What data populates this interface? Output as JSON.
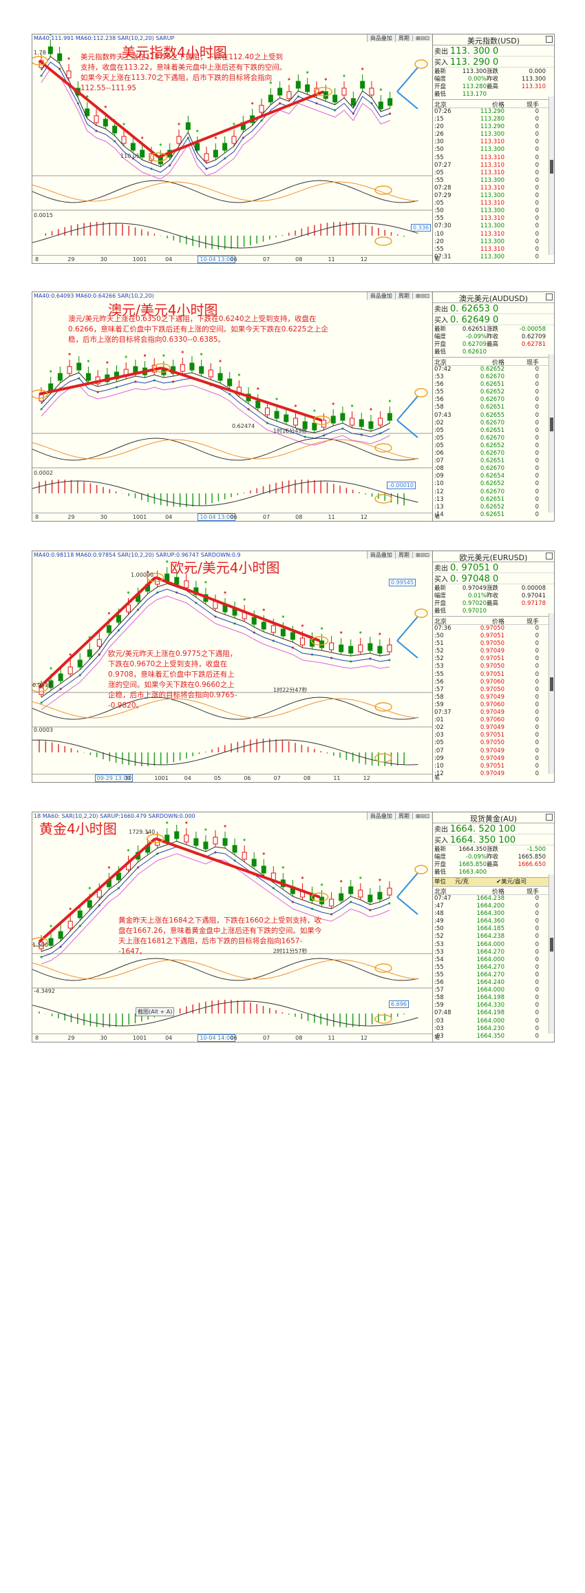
{
  "panels": [
    {
      "id": "usd",
      "title": "美元指数4小时图",
      "note": "美元指数昨天上涨在113.50之下遇阻，下跌在112.40之上受到支持，收盘在113.22，意味着美元盘中上涨后还有下跌的空间。如果今天上涨在113.70之下遇阻，后市下跌的目标将会指向112.55--111.95",
      "ma_line": "MA40:111.991  MA60:112.238  SAR(10,2,20)  SARUP",
      "topbar": [
        "商品叠加",
        "周期",
        "⊞⊟⊡"
      ],
      "price_labels": {
        "high": "1.78",
        "low": "110.05",
        "macd": "0.0015"
      },
      "badge": "0.336",
      "xaxis": [
        "8",
        "29",
        "30",
        "1001",
        "04",
        "10-04 13:00",
        "06",
        "07",
        "08",
        "11",
        "12"
      ],
      "quote": {
        "name": "美元指数(USD)",
        "sell_label": "卖出",
        "sell": "113. 300 0",
        "buy_label": "买入",
        "buy": "113. 290 0",
        "grid": [
          [
            "最新",
            "113.300",
            "涨跌",
            "0.000"
          ],
          [
            "幅度",
            "0.00%",
            "昨收",
            "113.300"
          ],
          [
            "开盘",
            "113.280",
            "最高",
            "113.310"
          ],
          [
            "最低",
            "113.170",
            "",
            ""
          ]
        ],
        "hdr": [
          "北京",
          "价格",
          "现手"
        ],
        "ticks": [
          [
            "07:26",
            "113.290",
            "0",
            "g"
          ],
          [
            ":15",
            "113.280",
            "0",
            "g"
          ],
          [
            ":20",
            "113.290",
            "0",
            "g"
          ],
          [
            ":26",
            "113.300",
            "0",
            "g"
          ],
          [
            ":30",
            "113.310",
            "0",
            "r"
          ],
          [
            ":50",
            "113.300",
            "0",
            "g"
          ],
          [
            ":55",
            "113.310",
            "0",
            "r"
          ],
          [
            "07:27",
            "113.310",
            "0",
            "r"
          ],
          [
            ":05",
            "113.310",
            "0",
            "r"
          ],
          [
            ":55",
            "113.300",
            "0",
            "g"
          ],
          [
            "07:28",
            "113.310",
            "0",
            "r"
          ],
          [
            "07:29",
            "113.300",
            "0",
            "g"
          ],
          [
            ":05",
            "113.310",
            "0",
            "r"
          ],
          [
            ":50",
            "113.300",
            "0",
            "g"
          ],
          [
            ":55",
            "113.310",
            "0",
            "r"
          ],
          [
            "07:30",
            "113.300",
            "0",
            "g"
          ],
          [
            ":10",
            "113.310",
            "0",
            "r"
          ],
          [
            ":20",
            "113.300",
            "0",
            "g"
          ],
          [
            ":55",
            "113.310",
            "0",
            "r"
          ],
          [
            "07:31",
            "113.300",
            "0",
            "g"
          ]
        ],
        "footer": "笔"
      }
    },
    {
      "id": "aud",
      "title": "澳元/美元4小时图",
      "note": "澳元/美元昨天上涨在0.6350之下遇阻，下跌在0.6240之上受到支持，收盘在0.6266，意味着汇价盘中下跌后还有上涨的空间。如果今天下跌在0.6225之上企稳，后市上涨的目标将会指向0.6330--0.6385。",
      "ma_line": "MA40:0.64093  MA60:0.64266  SAR(10,2,20)",
      "topbar": [
        "商品叠加",
        "周期",
        "⊞⊟⊡"
      ],
      "price_labels": {
        "low": "0.62474",
        "macd": "0.0002",
        "timer": "1时16分49秒"
      },
      "badge": "-0.00010",
      "xaxis": [
        "8",
        "29",
        "30",
        "1001",
        "04",
        "10-04 13:00",
        "06",
        "07",
        "08",
        "11",
        "12"
      ],
      "quote": {
        "name": "澳元美元(AUDUSD)",
        "sell_label": "卖出",
        "sell": "0. 62653 0",
        "buy_label": "买入",
        "buy": "0. 62649 0",
        "grid": [
          [
            "最新",
            "0.62651",
            "涨跌",
            "-0.00058"
          ],
          [
            "幅度",
            "-0.09%",
            "昨收",
            "0.62709"
          ],
          [
            "开盘",
            "0.62709",
            "最高",
            "0.62781"
          ],
          [
            "最低",
            "0.62610",
            "",
            ""
          ]
        ],
        "hdr": [
          "北京",
          "价格",
          "现手"
        ],
        "ticks": [
          [
            "07:42",
            "0.62652",
            "0",
            "g"
          ],
          [
            ":53",
            "0.62670",
            "0",
            "g"
          ],
          [
            ":56",
            "0.62651",
            "0",
            "g"
          ],
          [
            ":55",
            "0.62652",
            "0",
            "g"
          ],
          [
            ":56",
            "0.62670",
            "0",
            "g"
          ],
          [
            ":58",
            "0.62651",
            "0",
            "g"
          ],
          [
            "07:43",
            "0.62655",
            "0",
            "g"
          ],
          [
            ":02",
            "0.62670",
            "0",
            "g"
          ],
          [
            ":05",
            "0.62651",
            "0",
            "g"
          ],
          [
            ":05",
            "0.62670",
            "0",
            "g"
          ],
          [
            ":05",
            "0.62652",
            "0",
            "g"
          ],
          [
            ":06",
            "0.62670",
            "0",
            "g"
          ],
          [
            ":07",
            "0.62651",
            "0",
            "g"
          ],
          [
            ":08",
            "0.62670",
            "0",
            "g"
          ],
          [
            ":09",
            "0.62654",
            "0",
            "g"
          ],
          [
            ":10",
            "0.62652",
            "0",
            "g"
          ],
          [
            ":12",
            "0.62670",
            "0",
            "g"
          ],
          [
            ":13",
            "0.62651",
            "0",
            "g"
          ],
          [
            ":13",
            "0.62652",
            "0",
            "g"
          ],
          [
            ":14",
            "0.62651",
            "0",
            "g"
          ]
        ],
        "footer": "笔"
      }
    },
    {
      "id": "eur",
      "title": "欧元/美元4小时图",
      "note": "欧元/美元昨天上涨在0.9775之下遇阻，下跌在0.9670之上受到支持，收盘在0.9708，意味着汇价盘中下跌后还有上涨的空间。如果今天下跌在0.9660之上企稳，后市上涨的目标将会指向0.9765--0.9820。",
      "ma_line": "MA40:0.98118  MA60:0.97854  SAR(10,2,20)  SARUP:0.96747  SARDOWN:0.9",
      "topbar": [
        "商品叠加",
        "周期",
        "⊞⊟⊡"
      ],
      "price_labels": {
        "high": "1.00000",
        "low": "0.9536",
        "macd": "0.0003",
        "timer": "1时22分47秒"
      },
      "badge": "0.99545",
      "xaxis": [
        "",
        "",
        "09-29 13:00",
        "30",
        "1001",
        "04",
        "05",
        "06",
        "07",
        "08",
        "11",
        "12"
      ],
      "quote": {
        "name": "欧元美元(EURUSD)",
        "sell_label": "卖出",
        "sell": "0. 97051 0",
        "buy_label": "买入",
        "buy": "0. 97048 0",
        "grid": [
          [
            "最新",
            "0.97049",
            "涨跌",
            "0.00008"
          ],
          [
            "幅度",
            "0.01%",
            "昨收",
            "0.97041"
          ],
          [
            "开盘",
            "0.97020",
            "最高",
            "0.97178"
          ],
          [
            "最低",
            "0.97010",
            "",
            ""
          ]
        ],
        "hdr": [
          "北京",
          "价格",
          "现手"
        ],
        "ticks": [
          [
            "07:36",
            "0.97050",
            "0",
            "r"
          ],
          [
            ":50",
            "0.97051",
            "0",
            "r"
          ],
          [
            ":51",
            "0.97050",
            "0",
            "r"
          ],
          [
            ":52",
            "0.97049",
            "0",
            "r"
          ],
          [
            ":52",
            "0.97051",
            "0",
            "r"
          ],
          [
            ":53",
            "0.97050",
            "0",
            "r"
          ],
          [
            ":55",
            "0.97051",
            "0",
            "r"
          ],
          [
            ":56",
            "0.97060",
            "0",
            "r"
          ],
          [
            ":57",
            "0.97050",
            "0",
            "r"
          ],
          [
            ":58",
            "0.97049",
            "0",
            "r"
          ],
          [
            ":59",
            "0.97060",
            "0",
            "r"
          ],
          [
            "07:37",
            "0.97049",
            "0",
            "r"
          ],
          [
            ":01",
            "0.97060",
            "0",
            "r"
          ],
          [
            ":02",
            "0.97049",
            "0",
            "r"
          ],
          [
            ":03",
            "0.97051",
            "0",
            "r"
          ],
          [
            ":05",
            "0.97050",
            "0",
            "r"
          ],
          [
            ":07",
            "0.97049",
            "0",
            "r"
          ],
          [
            ":09",
            "0.97049",
            "0",
            "r"
          ],
          [
            ":10",
            "0.97051",
            "0",
            "r"
          ],
          [
            ":12",
            "0.97049",
            "0",
            "r"
          ]
        ],
        "footer": "笔"
      }
    },
    {
      "id": "gold",
      "title": "黄金4小时图",
      "note": "黄金昨天上涨在1684之下遇阻，下跌在1660之上受到支持，收盘在1667.26，意味着黄金盘中上涨后还有下跌的空间。如果今天上涨在1681之下遇阻，后市下跌的目标将会指向1657--1647。",
      "ma_line": "18 MA60:  SAR(10,2,20)  SARUP:1660.479  SARDOWN:0.000",
      "topbar": [
        "商品叠加",
        "周期",
        "⊞⊟⊡"
      ],
      "price_labels": {
        "high": "1729.340",
        "low": "1.500",
        "macd": "-4.3492",
        "timer": "2时11分57秒",
        "tooltip": "截图(Alt + A)"
      },
      "badge": "6.696",
      "xaxis": [
        "8",
        "29",
        "30",
        "1001",
        "04",
        "10-04 14:00",
        "06",
        "07",
        "08",
        "11",
        "12"
      ],
      "quote": {
        "name": "现货黄金(AU)",
        "sell_label": "卖出",
        "sell": "1664. 520 100",
        "buy_label": "买入",
        "buy": "1664. 350 100",
        "grid": [
          [
            "最新",
            "1664.350",
            "涨跌",
            "-1.500"
          ],
          [
            "幅度",
            "-0.09%",
            "昨收",
            "1665.850"
          ],
          [
            "开盘",
            "1665.850",
            "最高",
            "1666.650"
          ],
          [
            "最低",
            "1663.400",
            "",
            ""
          ]
        ],
        "unit": [
          "单位",
          "元/克",
          "✔美元/盎司"
        ],
        "hdr": [
          "北京",
          "价格",
          "现手"
        ],
        "ticks": [
          [
            "07:47",
            "1664.238",
            "0",
            "g"
          ],
          [
            ":47",
            "1664.200",
            "0",
            "g"
          ],
          [
            ":48",
            "1664.300",
            "0",
            "g"
          ],
          [
            ":49",
            "1664.360",
            "0",
            "g"
          ],
          [
            ":50",
            "1664.185",
            "0",
            "g"
          ],
          [
            ":52",
            "1664.238",
            "0",
            "g"
          ],
          [
            ":53",
            "1664.000",
            "0",
            "g"
          ],
          [
            ":53",
            "1664.270",
            "0",
            "g"
          ],
          [
            ":54",
            "1664.000",
            "0",
            "g"
          ],
          [
            ":55",
            "1664.270",
            "0",
            "g"
          ],
          [
            ":55",
            "1664.270",
            "0",
            "g"
          ],
          [
            ":56",
            "1664.240",
            "0",
            "g"
          ],
          [
            ":57",
            "1664.000",
            "0",
            "g"
          ],
          [
            ":58",
            "1664.198",
            "0",
            "g"
          ],
          [
            ":59",
            "1664.330",
            "0",
            "g"
          ],
          [
            "07:48",
            "1664.198",
            "0",
            "g"
          ],
          [
            ":03",
            "1664.000",
            "0",
            "g"
          ],
          [
            ":03",
            "1664.230",
            "0",
            "g"
          ],
          [
            ":03",
            "1664.350",
            "0",
            "g"
          ]
        ],
        "footer": "笔"
      }
    }
  ],
  "colors": {
    "red": "#e02020",
    "green": "#0a8a0a",
    "blue": "#2f8de0",
    "orange": "#f0a020"
  }
}
